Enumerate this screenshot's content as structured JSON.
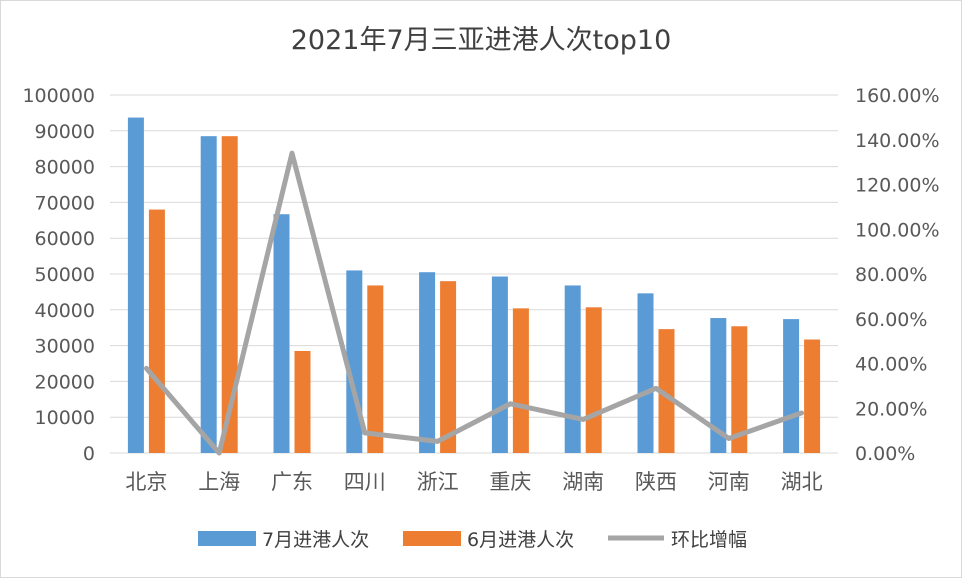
{
  "chart_data": {
    "type": "bar",
    "title": "2021年7月三亚进港人次top10",
    "categories": [
      "北京",
      "上海",
      "广东",
      "四川",
      "浙江",
      "重庆",
      "湖南",
      "陕西",
      "河南",
      "湖北"
    ],
    "series": [
      {
        "name": "7月进港人次",
        "kind": "bar",
        "axis": "left",
        "color": "#5b9bd5",
        "values": [
          93700,
          88500,
          66700,
          51000,
          50500,
          49300,
          46800,
          44600,
          37700,
          37400
        ]
      },
      {
        "name": "6月进港人次",
        "kind": "bar",
        "axis": "left",
        "color": "#ed7d31",
        "values": [
          68000,
          88500,
          28500,
          46800,
          48000,
          40400,
          40700,
          34600,
          35400,
          31700
        ]
      },
      {
        "name": "环比增幅",
        "kind": "line",
        "axis": "right",
        "color": "#a5a5a5",
        "values": [
          37.8,
          0.0,
          134.0,
          9.0,
          5.2,
          22.0,
          15.0,
          28.9,
          6.5,
          17.9
        ]
      }
    ],
    "left_axis": {
      "min": 0,
      "max": 100000,
      "step": 10000,
      "tick_labels": [
        "0",
        "10000",
        "20000",
        "30000",
        "40000",
        "50000",
        "60000",
        "70000",
        "80000",
        "90000",
        "100000"
      ]
    },
    "right_axis": {
      "min": 0,
      "max": 160,
      "step": 20,
      "unit": "%",
      "tick_labels": [
        "0.00%",
        "20.00%",
        "40.00%",
        "60.00%",
        "80.00%",
        "100.00%",
        "120.00%",
        "140.00%",
        "160.00%"
      ]
    },
    "grid": true,
    "legend_position": "bottom"
  }
}
